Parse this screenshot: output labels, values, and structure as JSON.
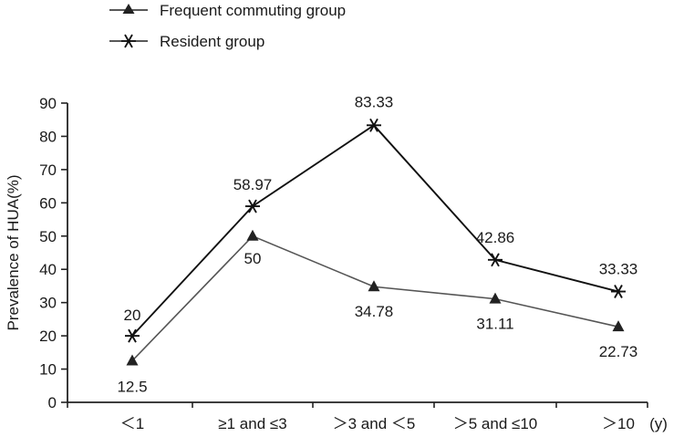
{
  "chart_data": {
    "type": "line",
    "title": "",
    "xlabel": "",
    "ylabel": "Prevalence of HUA(%)",
    "x_unit": "(y)",
    "ylim": [
      0,
      90
    ],
    "yticks": [
      0,
      10,
      20,
      30,
      40,
      50,
      60,
      70,
      80,
      90
    ],
    "categories": [
      "＜1",
      "≥1 and ≤3",
      "＞3 and ＜5",
      "＞5 and ≤10",
      "＞10"
    ],
    "grid": false,
    "legend_position": "top-left",
    "series": [
      {
        "name": "Frequent commuting group",
        "marker": "triangle",
        "color": "#555555",
        "values": [
          12.5,
          50,
          34.78,
          31.11,
          22.73
        ],
        "labels": [
          "12.5",
          "50",
          "34.78",
          "31.11",
          "22.73"
        ]
      },
      {
        "name": "Resident group",
        "marker": "asterisk",
        "color": "#111111",
        "values": [
          20,
          58.97,
          83.33,
          42.86,
          33.33
        ],
        "labels": [
          "20",
          "58.97",
          "83.33",
          "42.86",
          "33.33"
        ]
      }
    ]
  }
}
